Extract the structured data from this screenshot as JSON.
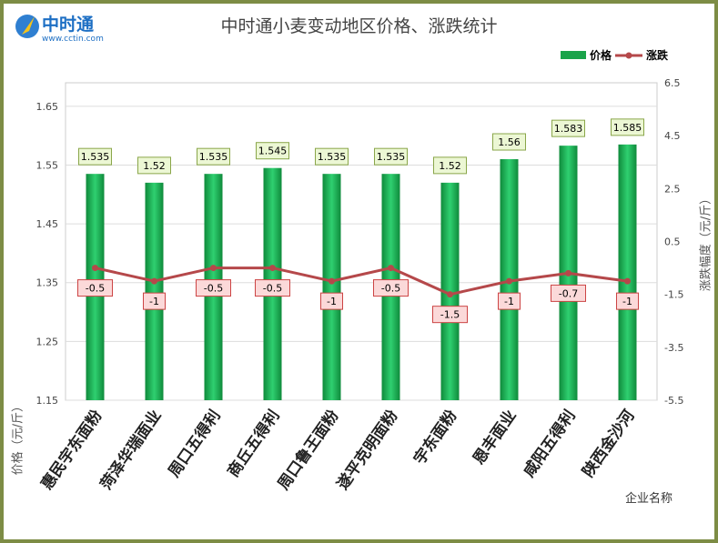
{
  "logo": {
    "name": "中时通",
    "url": "www.cctin.com"
  },
  "chart_data": {
    "type": "bar",
    "title": "中时通小麦变动地区价格、涨跌统计",
    "categories": [
      "惠民宇东面粉",
      "菏泽华瑞面业",
      "周口五得利",
      "商丘五得利",
      "周口鲁王面粉",
      "遂平克明面粉",
      "宇东面粉",
      "恩丰面业",
      "咸阳五得利",
      "陕西金沙河"
    ],
    "series": [
      {
        "name": "价格",
        "type": "bar",
        "axis": "left",
        "color": "#1aa34a",
        "values": [
          1.535,
          1.52,
          1.535,
          1.545,
          1.535,
          1.535,
          1.52,
          1.56,
          1.583,
          1.585
        ]
      },
      {
        "name": "涨跌",
        "type": "line",
        "axis": "right",
        "color": "#b5484a",
        "values": [
          -0.5,
          -1,
          -0.5,
          -0.5,
          -1,
          -0.5,
          -1.5,
          -1,
          -0.7,
          -1
        ]
      }
    ],
    "xlabel": "企业名称",
    "ylabel": "价格（元/斤）",
    "y2label": "涨跌幅度（元/斤）",
    "ylim": [
      1.15,
      1.69
    ],
    "yticks": [
      "1.15",
      "1.25",
      "1.35",
      "1.45",
      "1.55",
      "1.65"
    ],
    "y2lim": [
      -5.5,
      6.5
    ],
    "y2ticks": [
      "-5.5",
      "-3.5",
      "-1.5",
      "0.5",
      "2.5",
      "4.5",
      "6.5"
    ],
    "legend": "top-right"
  }
}
